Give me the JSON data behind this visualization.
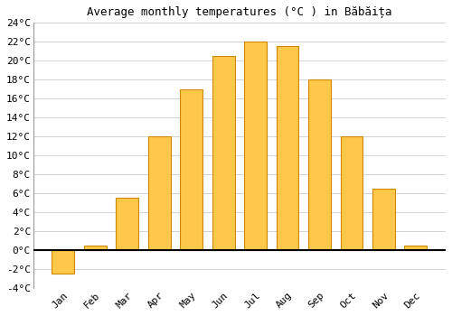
{
  "title": "Average monthly temperatures (°C ) in Băbăița",
  "months": [
    "Jan",
    "Feb",
    "Mar",
    "Apr",
    "May",
    "Jun",
    "Jul",
    "Aug",
    "Sep",
    "Oct",
    "Nov",
    "Dec"
  ],
  "values": [
    -2.5,
    0.5,
    5.5,
    12.0,
    17.0,
    20.5,
    22.0,
    21.5,
    18.0,
    12.0,
    6.5,
    0.5
  ],
  "bar_color": "#FFC84A",
  "bar_edge_color": "#CC8800",
  "background_color": "#ffffff",
  "grid_color": "#cccccc",
  "ylim": [
    -4,
    24
  ],
  "yticks": [
    -4,
    -2,
    0,
    2,
    4,
    6,
    8,
    10,
    12,
    14,
    16,
    18,
    20,
    22,
    24
  ],
  "title_fontsize": 9,
  "tick_fontsize": 8,
  "zero_line_color": "#000000"
}
